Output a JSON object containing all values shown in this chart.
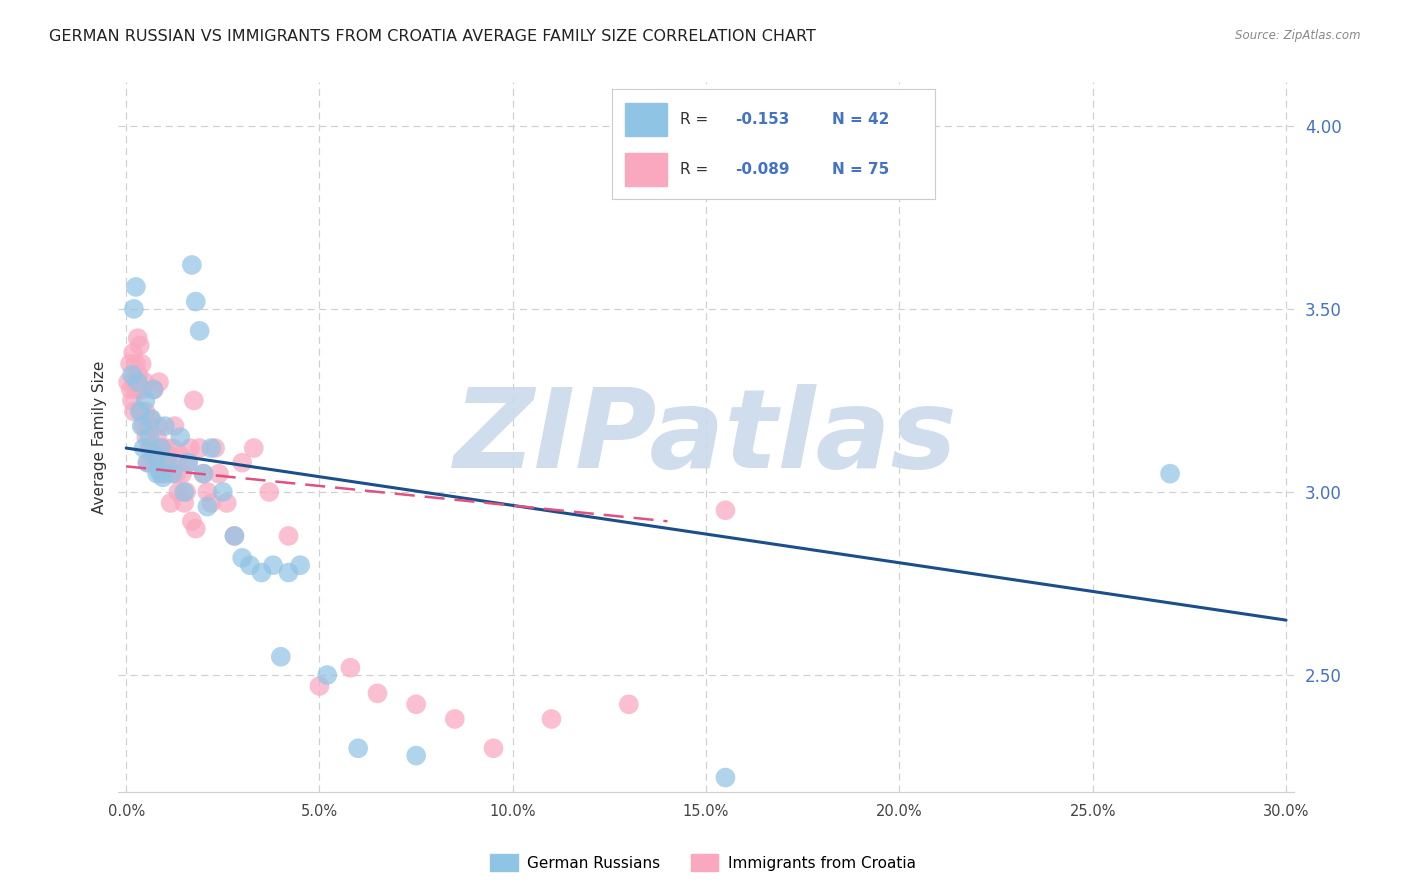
{
  "title": "GERMAN RUSSIAN VS IMMIGRANTS FROM CROATIA AVERAGE FAMILY SIZE CORRELATION CHART",
  "source": "Source: ZipAtlas.com",
  "ylabel": "Average Family Size",
  "xlabel_ticks": [
    "0.0%",
    "5.0%",
    "10.0%",
    "15.0%",
    "20.0%",
    "25.0%",
    "30.0%"
  ],
  "xlabel_vals": [
    0,
    5,
    10,
    15,
    20,
    25,
    30
  ],
  "ytick_labels": [
    "2.50",
    "3.00",
    "3.50",
    "4.00"
  ],
  "ytick_vals": [
    2.5,
    3.0,
    3.5,
    4.0
  ],
  "xlim": [
    -0.2,
    30.2
  ],
  "ylim": [
    2.18,
    4.12
  ],
  "legend_label_blue": "German Russians",
  "legend_label_pink": "Immigrants from Croatia",
  "blue_color": "#90c4e4",
  "pink_color": "#f9a8c0",
  "blue_line_color": "#1a4f8a",
  "pink_line_color": "#e05080",
  "watermark": "ZIPatlas",
  "watermark_color": "#c8d8ea",
  "title_fontsize": 11.5,
  "axis_label_fontsize": 11,
  "blue_x": [
    0.15,
    0.2,
    0.25,
    0.3,
    0.35,
    0.4,
    0.45,
    0.5,
    0.55,
    0.6,
    0.65,
    0.7,
    0.75,
    0.8,
    0.85,
    0.9,
    0.95,
    1.0,
    1.1,
    1.2,
    1.4,
    1.5,
    1.6,
    1.7,
    1.8,
    1.9,
    2.0,
    2.1,
    2.2,
    2.5,
    2.8,
    3.0,
    3.2,
    3.5,
    3.8,
    4.0,
    4.2,
    4.5,
    5.2,
    6.0,
    7.5,
    15.5,
    27.0
  ],
  "blue_y": [
    3.32,
    3.5,
    3.56,
    3.3,
    3.22,
    3.18,
    3.12,
    3.25,
    3.08,
    3.15,
    3.2,
    3.28,
    3.1,
    3.05,
    3.06,
    3.12,
    3.04,
    3.18,
    3.08,
    3.05,
    3.15,
    3.0,
    3.08,
    3.62,
    3.52,
    3.44,
    3.05,
    2.96,
    3.12,
    3.0,
    2.88,
    2.82,
    2.8,
    2.78,
    2.8,
    2.55,
    2.78,
    2.8,
    2.5,
    2.3,
    2.28,
    2.22,
    3.05
  ],
  "pink_x": [
    0.05,
    0.1,
    0.12,
    0.15,
    0.18,
    0.2,
    0.22,
    0.25,
    0.28,
    0.3,
    0.32,
    0.35,
    0.38,
    0.4,
    0.42,
    0.45,
    0.48,
    0.5,
    0.52,
    0.55,
    0.58,
    0.6,
    0.62,
    0.65,
    0.68,
    0.7,
    0.72,
    0.75,
    0.78,
    0.8,
    0.82,
    0.85,
    0.88,
    0.9,
    0.92,
    0.95,
    0.98,
    1.0,
    1.05,
    1.1,
    1.15,
    1.2,
    1.25,
    1.3,
    1.35,
    1.4,
    1.45,
    1.5,
    1.55,
    1.6,
    1.65,
    1.7,
    1.75,
    1.8,
    1.9,
    2.0,
    2.1,
    2.2,
    2.3,
    2.4,
    2.6,
    2.8,
    3.0,
    3.3,
    3.7,
    4.2,
    5.0,
    5.8,
    6.5,
    7.5,
    8.5,
    9.5,
    11.0,
    13.0,
    15.5
  ],
  "pink_y": [
    3.3,
    3.35,
    3.28,
    3.25,
    3.38,
    3.22,
    3.3,
    3.35,
    3.28,
    3.42,
    3.32,
    3.4,
    3.22,
    3.35,
    3.28,
    3.18,
    3.3,
    3.22,
    3.15,
    3.08,
    3.18,
    3.12,
    3.2,
    3.08,
    3.12,
    3.1,
    3.28,
    3.12,
    3.08,
    3.15,
    3.18,
    3.3,
    3.1,
    3.05,
    3.12,
    3.08,
    3.05,
    3.12,
    3.08,
    3.1,
    2.97,
    3.12,
    3.18,
    3.05,
    3.0,
    3.1,
    3.05,
    2.97,
    3.0,
    3.08,
    3.12,
    2.92,
    3.25,
    2.9,
    3.12,
    3.05,
    3.0,
    2.97,
    3.12,
    3.05,
    2.97,
    2.88,
    3.08,
    3.12,
    3.0,
    2.88,
    2.47,
    2.52,
    2.45,
    2.42,
    2.38,
    2.3,
    2.38,
    2.42,
    2.95
  ],
  "blue_line_x": [
    0,
    30
  ],
  "blue_line_y": [
    3.12,
    2.65
  ],
  "pink_line_x": [
    0,
    14
  ],
  "pink_line_y": [
    3.07,
    2.92
  ]
}
